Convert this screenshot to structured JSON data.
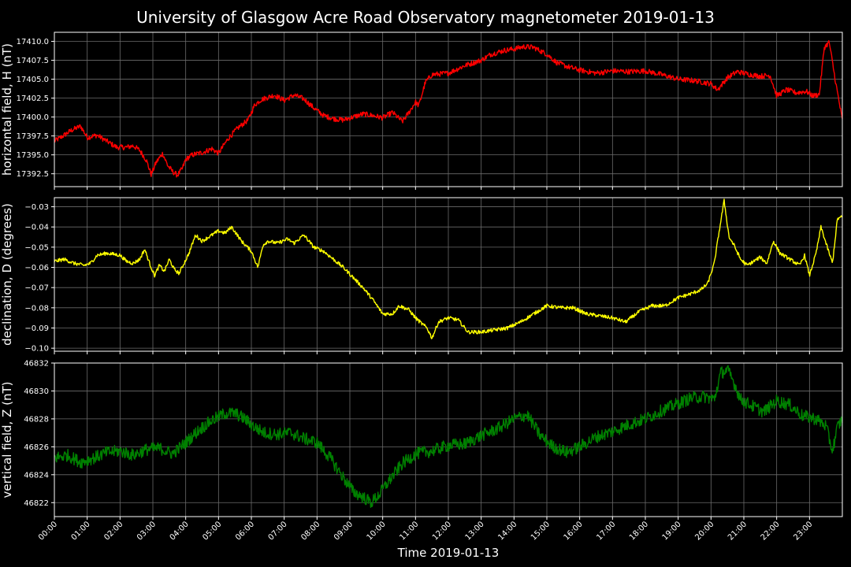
{
  "chart_data": {
    "type": "line",
    "title": "University of Glasgow Acre Road Observatory magnetometer 2019-01-13",
    "xlabel": "Time 2019-01-13",
    "x_tick_labels": [
      "00:00",
      "01:00",
      "02:00",
      "03:00",
      "04:00",
      "05:00",
      "06:00",
      "07:00",
      "08:00",
      "09:00",
      "10:00",
      "11:00",
      "12:00",
      "13:00",
      "14:00",
      "15:00",
      "16:00",
      "17:00",
      "18:00",
      "19:00",
      "20:00",
      "21:00",
      "22:00",
      "23:00"
    ],
    "xlim_hours": [
      0,
      24
    ],
    "grid": true,
    "panels": [
      {
        "name": "H",
        "ylabel": "horizontal field, H (nT)",
        "color": "#ff0000",
        "ylim": [
          17390.8,
          17411.2
        ],
        "yticks": [
          "17392.5",
          "17395.0",
          "17397.5",
          "17400.0",
          "17402.5",
          "17405.0",
          "17407.5",
          "17410.0"
        ],
        "ytick_values": [
          17392.5,
          17395.0,
          17397.5,
          17400.0,
          17402.5,
          17405.0,
          17407.5,
          17410.0
        ],
        "noise": 0.35,
        "x": [
          0,
          0.3,
          0.5,
          0.8,
          1.0,
          1.3,
          1.6,
          1.9,
          2.2,
          2.4,
          2.6,
          2.8,
          2.95,
          3.1,
          3.3,
          3.45,
          3.6,
          3.75,
          3.9,
          4.0,
          4.2,
          4.5,
          4.8,
          5.0,
          5.3,
          5.6,
          5.9,
          6.1,
          6.3,
          6.5,
          6.7,
          7.0,
          7.3,
          7.6,
          7.9,
          8.2,
          8.5,
          8.8,
          9.1,
          9.4,
          9.7,
          10.0,
          10.3,
          10.6,
          10.8,
          11.0,
          11.1,
          11.3,
          11.5,
          12.0,
          12.5,
          13.0,
          13.3,
          13.7,
          14.0,
          14.3,
          14.6,
          15.0,
          15.3,
          15.6,
          16.0,
          16.5,
          17.0,
          17.5,
          18.0,
          18.5,
          19.0,
          19.5,
          20.0,
          20.2,
          20.5,
          20.8,
          21.2,
          21.5,
          21.8,
          22.0,
          22.3,
          22.6,
          22.9,
          23.1,
          23.3,
          23.45,
          23.6,
          23.8,
          24.0
        ],
        "y": [
          17396.8,
          17397.6,
          17398.2,
          17398.8,
          17397.3,
          17397.6,
          17396.8,
          17396.0,
          17396.0,
          17396.2,
          17395.6,
          17394.3,
          17392.4,
          17394.0,
          17395.2,
          17393.6,
          17392.8,
          17392.3,
          17393.2,
          17394.4,
          17395.0,
          17395.3,
          17395.8,
          17395.2,
          17397.2,
          17398.6,
          17399.6,
          17401.6,
          17402.3,
          17402.6,
          17402.9,
          17402.2,
          17402.9,
          17402.4,
          17401.2,
          17400.2,
          17399.8,
          17399.6,
          17400.0,
          17400.4,
          17400.2,
          17399.9,
          17400.6,
          17399.4,
          17400.6,
          17402.0,
          17401.5,
          17404.6,
          17405.6,
          17405.8,
          17406.8,
          17407.5,
          17408.3,
          17408.8,
          17409.0,
          17409.3,
          17409.2,
          17408.3,
          17407.2,
          17406.7,
          17406.2,
          17405.8,
          17406.1,
          17406.0,
          17406.1,
          17405.6,
          17405.0,
          17404.8,
          17404.4,
          17403.6,
          17405.2,
          17406.0,
          17405.6,
          17405.4,
          17405.5,
          17402.8,
          17403.6,
          17403.2,
          17403.4,
          17402.8,
          17403.0,
          17409.2,
          17409.9,
          17404.5,
          17399.6
        ]
      },
      {
        "name": "D",
        "ylabel": "declination, D (degrees)",
        "color": "#ffff00",
        "ylim": [
          -0.1015,
          -0.0255
        ],
        "yticks": [
          "−0.10",
          "−0.09",
          "−0.08",
          "−0.07",
          "−0.06",
          "−0.05",
          "−0.04",
          "−0.03"
        ],
        "ytick_values": [
          -0.1,
          -0.09,
          -0.08,
          -0.07,
          -0.06,
          -0.05,
          -0.04,
          -0.03
        ],
        "noise": 0.0009,
        "x": [
          0,
          0.3,
          0.6,
          0.9,
          1.1,
          1.3,
          1.6,
          2.0,
          2.2,
          2.4,
          2.6,
          2.75,
          2.9,
          3.05,
          3.2,
          3.35,
          3.5,
          3.65,
          3.8,
          3.95,
          4.1,
          4.3,
          4.5,
          4.7,
          5.0,
          5.2,
          5.4,
          5.7,
          6.0,
          6.2,
          6.35,
          6.5,
          6.8,
          7.1,
          7.3,
          7.6,
          7.9,
          8.2,
          8.5,
          8.8,
          9.1,
          9.4,
          9.7,
          10.0,
          10.3,
          10.5,
          10.8,
          11.0,
          11.2,
          11.35,
          11.5,
          11.7,
          12.0,
          12.3,
          12.6,
          13.0,
          13.4,
          13.8,
          14.2,
          14.6,
          15.0,
          15.4,
          15.8,
          16.2,
          16.6,
          17.0,
          17.4,
          17.8,
          18.2,
          18.6,
          19.0,
          19.4,
          19.7,
          19.9,
          20.1,
          20.25,
          20.4,
          20.55,
          20.7,
          20.9,
          21.1,
          21.3,
          21.5,
          21.7,
          21.9,
          22.1,
          22.3,
          22.5,
          22.7,
          22.85,
          23.0,
          23.2,
          23.35,
          23.5,
          23.7,
          23.85,
          24.0
        ],
        "y": [
          -0.057,
          -0.056,
          -0.058,
          -0.059,
          -0.058,
          -0.054,
          -0.053,
          -0.054,
          -0.057,
          -0.058,
          -0.056,
          -0.051,
          -0.058,
          -0.064,
          -0.059,
          -0.062,
          -0.056,
          -0.061,
          -0.063,
          -0.058,
          -0.053,
          -0.044,
          -0.047,
          -0.045,
          -0.042,
          -0.043,
          -0.04,
          -0.047,
          -0.052,
          -0.06,
          -0.049,
          -0.047,
          -0.048,
          -0.046,
          -0.048,
          -0.044,
          -0.05,
          -0.052,
          -0.056,
          -0.06,
          -0.065,
          -0.07,
          -0.076,
          -0.083,
          -0.083,
          -0.079,
          -0.081,
          -0.085,
          -0.088,
          -0.09,
          -0.095,
          -0.087,
          -0.085,
          -0.086,
          -0.092,
          -0.092,
          -0.091,
          -0.09,
          -0.087,
          -0.083,
          -0.079,
          -0.08,
          -0.08,
          -0.083,
          -0.084,
          -0.085,
          -0.087,
          -0.082,
          -0.079,
          -0.079,
          -0.075,
          -0.073,
          -0.071,
          -0.068,
          -0.058,
          -0.042,
          -0.027,
          -0.045,
          -0.049,
          -0.056,
          -0.059,
          -0.057,
          -0.055,
          -0.058,
          -0.047,
          -0.053,
          -0.055,
          -0.057,
          -0.059,
          -0.054,
          -0.064,
          -0.053,
          -0.04,
          -0.048,
          -0.058,
          -0.036,
          -0.035
        ]
      },
      {
        "name": "Z",
        "ylabel": "vertical field, Z (nT)",
        "color": "#008000",
        "ylim": [
          46821.0,
          46832.0
        ],
        "yticks": [
          "46822",
          "46824",
          "46826",
          "46828",
          "46830",
          "46832"
        ],
        "ytick_values": [
          46822,
          46824,
          46826,
          46828,
          46830,
          46832
        ],
        "noise": 0.45,
        "x": [
          0,
          0.4,
          0.8,
          1.2,
          1.6,
          2.0,
          2.4,
          2.8,
          3.2,
          3.6,
          4.0,
          4.4,
          4.8,
          5.2,
          5.5,
          5.8,
          6.1,
          6.4,
          6.8,
          7.2,
          7.6,
          8.0,
          8.4,
          8.8,
          9.1,
          9.4,
          9.65,
          9.9,
          10.2,
          10.6,
          11.0,
          11.5,
          12.0,
          12.5,
          13.0,
          13.5,
          14.0,
          14.4,
          14.8,
          15.2,
          15.6,
          16.0,
          16.5,
          17.0,
          17.5,
          18.0,
          18.5,
          19.0,
          19.4,
          19.8,
          20.1,
          20.3,
          20.5,
          20.7,
          20.9,
          21.2,
          21.6,
          22.0,
          22.4,
          22.8,
          23.2,
          23.5,
          23.7,
          23.85,
          24.0
        ],
        "y": [
          46825.2,
          46825.4,
          46824.9,
          46825.2,
          46825.6,
          46825.7,
          46825.4,
          46825.8,
          46825.9,
          46825.5,
          46826.3,
          46827.2,
          46827.9,
          46828.4,
          46828.4,
          46828.0,
          46827.4,
          46827.0,
          46826.9,
          46827.0,
          46826.6,
          46826.3,
          46825.2,
          46823.8,
          46822.8,
          46822.4,
          46822.0,
          46822.6,
          46823.6,
          46824.8,
          46825.5,
          46825.7,
          46826.1,
          46826.2,
          46826.8,
          46827.3,
          46828.0,
          46828.3,
          46826.8,
          46826.0,
          46825.6,
          46826.0,
          46826.7,
          46827.1,
          46827.6,
          46828.0,
          46828.6,
          46829.1,
          46829.5,
          46829.6,
          46829.4,
          46831.3,
          46831.5,
          46830.6,
          46829.4,
          46829.0,
          46828.5,
          46829.3,
          46829.0,
          46828.2,
          46828.0,
          46827.5,
          46825.7,
          46827.4,
          46828.0
        ]
      }
    ]
  }
}
